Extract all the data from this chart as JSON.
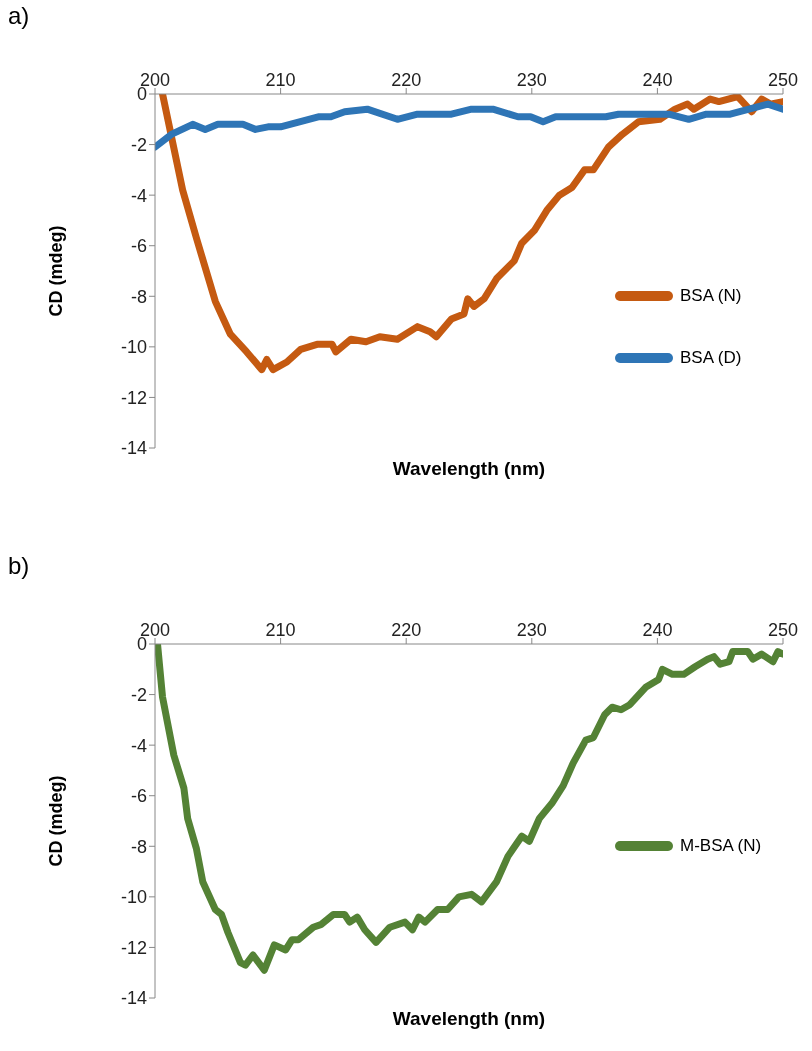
{
  "chart_data": [
    {
      "type": "line",
      "annotations": [
        "a)"
      ],
      "xlabel": "Wavelength (nm)",
      "ylabel": "CD (mdeg)",
      "xlim": [
        200,
        250
      ],
      "xticks": [
        200,
        210,
        220,
        230,
        240,
        250
      ],
      "ylim": [
        -14,
        0
      ],
      "yticks": [
        -14,
        -12,
        -10,
        -8,
        -6,
        -4,
        -2,
        0
      ],
      "legend": "right",
      "marker": "none",
      "line_style": "solid",
      "series": [
        {
          "name": "BSA (N)",
          "color": "#c55a11",
          "x": [
            200.6,
            202.2,
            203.3,
            204.8,
            206,
            207.3,
            208.5,
            208.9,
            209.4,
            210.5,
            211.6,
            212.9,
            214.1,
            214.4,
            215.6,
            216.8,
            217.9,
            219.3,
            220.9,
            221.9,
            222.4,
            223.6,
            224.6,
            224.9,
            225.4,
            226.2,
            227.2,
            228.6,
            229.2,
            230.2,
            231.2,
            232.2,
            233.2,
            234.2,
            234.9,
            236.1,
            237.2,
            238.5,
            240.2,
            241.4,
            242.4,
            242.9,
            244.2,
            244.9,
            246.4,
            247.5,
            248.3,
            249,
            250
          ],
          "values": [
            0,
            -3.8,
            -5.7,
            -8.2,
            -9.5,
            -10.2,
            -10.9,
            -10.5,
            -10.9,
            -10.6,
            -10.1,
            -9.9,
            -9.9,
            -10.2,
            -9.7,
            -9.8,
            -9.6,
            -9.7,
            -9.2,
            -9.4,
            -9.6,
            -8.9,
            -8.7,
            -8.1,
            -8.4,
            -8.1,
            -7.3,
            -6.6,
            -5.9,
            -5.4,
            -4.6,
            -4.0,
            -3.7,
            -3.0,
            -3.0,
            -2.1,
            -1.6,
            -1.1,
            -1.0,
            -0.6,
            -0.4,
            -0.6,
            -0.2,
            -0.3,
            -0.1,
            -0.7,
            -0.2,
            -0.4,
            -0.3
          ]
        },
        {
          "name": "BSA (D)",
          "color": "#2e75b6",
          "x": [
            200,
            201.3,
            203,
            204,
            205,
            207,
            208,
            209,
            210,
            213,
            214,
            215.1,
            216.9,
            219.3,
            220.9,
            223.6,
            225.2,
            226.9,
            228.9,
            229.9,
            230.9,
            231.9,
            235.9,
            236.9,
            240.9,
            242.5,
            243.9,
            245.8,
            248.8,
            250
          ],
          "values": [
            -2.1,
            -1.6,
            -1.2,
            -1.4,
            -1.2,
            -1.2,
            -1.4,
            -1.3,
            -1.3,
            -0.9,
            -0.9,
            -0.7,
            -0.6,
            -1.0,
            -0.8,
            -0.8,
            -0.6,
            -0.6,
            -0.9,
            -0.9,
            -1.1,
            -0.9,
            -0.9,
            -0.8,
            -0.8,
            -1.0,
            -0.8,
            -0.8,
            -0.4,
            -0.6
          ]
        }
      ]
    },
    {
      "type": "line",
      "annotations": [
        "b)"
      ],
      "xlabel": "Wavelength (nm)",
      "ylabel": "CD (mdeg)",
      "xlim": [
        200,
        250
      ],
      "xticks": [
        200,
        210,
        220,
        230,
        240,
        250
      ],
      "ylim": [
        -14,
        0
      ],
      "yticks": [
        -14,
        -12,
        -10,
        -8,
        -6,
        -4,
        -2,
        0
      ],
      "legend": "right",
      "marker": "none",
      "line_style": "solid",
      "series": [
        {
          "name": "M-BSA (N)",
          "color": "#548235",
          "x": [
            200.2,
            200.6,
            201.5,
            202.3,
            202.6,
            203.3,
            203.8,
            204.8,
            205.3,
            205.8,
            206.8,
            207.2,
            207.8,
            208.7,
            209.5,
            210.4,
            210.9,
            211.4,
            212.6,
            213.2,
            214.2,
            215.1,
            215.5,
            216.1,
            216.7,
            217.6,
            218.7,
            219.9,
            220.5,
            221,
            221.5,
            222.5,
            223.3,
            224.2,
            225.2,
            226,
            227.2,
            228.1,
            229.2,
            229.8,
            230.6,
            231.6,
            232.5,
            233.3,
            234.3,
            234.9,
            235.8,
            236.4,
            237.1,
            237.8,
            239.1,
            240.1,
            240.4,
            241.2,
            242.1,
            243,
            244,
            244.5,
            245,
            245.7,
            246,
            247.2,
            247.6,
            248.3,
            249.2,
            249.6,
            250
          ],
          "values": [
            0,
            -2.1,
            -4.4,
            -5.7,
            -6.9,
            -8.1,
            -9.4,
            -10.5,
            -10.7,
            -11.4,
            -12.6,
            -12.7,
            -12.3,
            -12.9,
            -11.9,
            -12.1,
            -11.7,
            -11.7,
            -11.2,
            -11.1,
            -10.7,
            -10.7,
            -11.0,
            -10.8,
            -11.3,
            -11.8,
            -11.2,
            -11.0,
            -11.3,
            -10.8,
            -11.0,
            -10.5,
            -10.5,
            -10.0,
            -9.9,
            -10.2,
            -9.4,
            -8.4,
            -7.6,
            -7.8,
            -6.9,
            -6.3,
            -5.6,
            -4.7,
            -3.8,
            -3.7,
            -2.8,
            -2.5,
            -2.6,
            -2.4,
            -1.7,
            -1.4,
            -1.0,
            -1.2,
            -1.2,
            -0.9,
            -0.6,
            -0.5,
            -0.8,
            -0.7,
            -0.3,
            -0.3,
            -0.6,
            -0.4,
            -0.7,
            -0.3,
            -0.4
          ]
        }
      ]
    }
  ]
}
